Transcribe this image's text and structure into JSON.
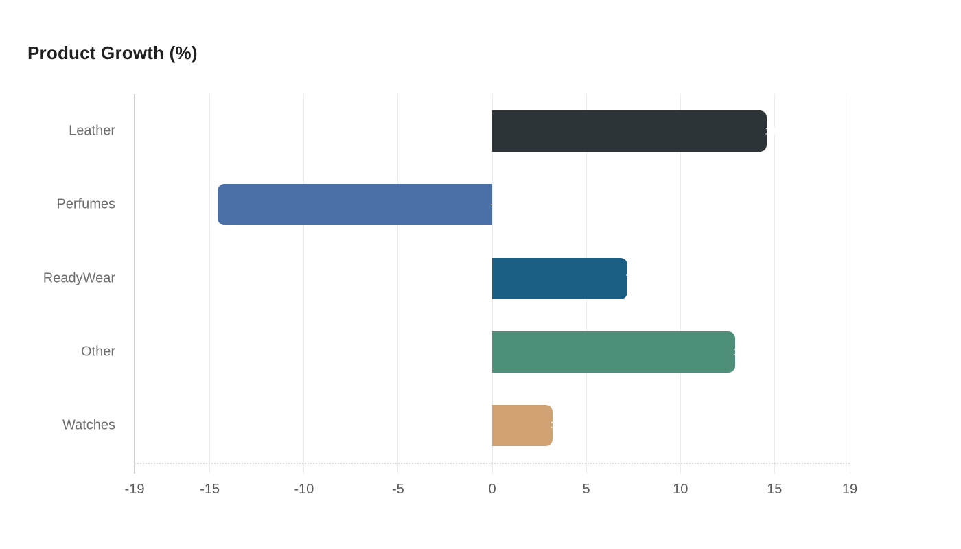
{
  "chart_data": {
    "type": "bar",
    "orientation": "horizontal",
    "title": "Product Growth (%)",
    "categories": [
      "Leather",
      "Perfumes",
      "ReadyWear",
      "Other",
      "Watches"
    ],
    "values": [
      14.6,
      -14.6,
      7.2,
      12.9,
      3.2
    ],
    "bar_colors": [
      "#2c3437",
      "#4b70a8",
      "#1a5e83",
      "#4e8f7a",
      "#d0a173"
    ],
    "xlabel": "",
    "ylabel": "",
    "xlim": [
      -19,
      19
    ],
    "xticks": [
      -19,
      -15,
      -10,
      -5,
      0,
      5,
      10,
      15,
      19
    ],
    "grid": true,
    "legend": "none",
    "value_label_color": "#ffffff",
    "background_color": "#ffffff",
    "title_color": "#1f1f1f",
    "category_label_color": "#6e6e6e",
    "tick_label_color": "#595959",
    "gridline_color": "#ececec"
  }
}
